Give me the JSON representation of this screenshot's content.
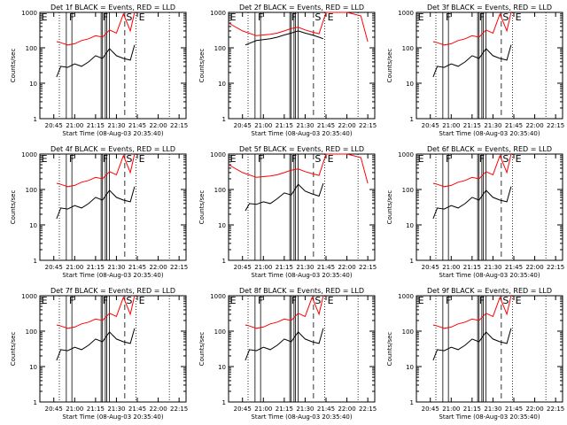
{
  "figure": {
    "xlabel": "Start Time (08-Aug-03 20:35:40)",
    "ylabel": "Counts/sec",
    "line_colors": {
      "events": "#000000",
      "lld": "#ff0000"
    },
    "marker_labels": [
      "E",
      "F",
      "F",
      "S",
      "E"
    ]
  },
  "chart_data": [
    {
      "type": "line",
      "title": "Det 1f BLACK = Events, RED = LLD",
      "xlabel": "Start Time (08-Aug-03 20:35:40)",
      "ylabel": "Counts/sec",
      "yscale": "log",
      "ylim": [
        1,
        1000
      ],
      "xticks": [
        "20:45",
        "21:00",
        "21:15",
        "21:30",
        "21:45",
        "22:00",
        "22:15"
      ],
      "yticks": [
        "1",
        "10",
        "100",
        "1000"
      ],
      "series": [
        {
          "x": [
            "20:47",
            "20:50",
            "20:55",
            "21:00",
            "21:05",
            "21:10",
            "21:15",
            "21:20",
            "21:25",
            "21:30",
            "21:35",
            "21:40",
            "21:43"
          ],
          "y": [
            15,
            30,
            28,
            35,
            30,
            40,
            60,
            50,
            95,
            60,
            50,
            45,
            120
          ]
        },
        {
          "x": [
            "20:47",
            "20:50",
            "20:55",
            "21:00",
            "21:05",
            "21:10",
            "21:15",
            "21:20",
            "21:25",
            "21:30",
            "21:35",
            "21:40",
            "21:43"
          ],
          "y": [
            150,
            140,
            120,
            130,
            160,
            180,
            220,
            200,
            320,
            260,
            900,
            300,
            1000
          ]
        }
      ]
    },
    {
      "type": "line",
      "title": "Det 2f BLACK = Events, RED = LLD",
      "xlabel": "Start Time (08-Aug-03 20:35:40)",
      "ylabel": "Counts/sec",
      "yscale": "log",
      "ylim": [
        1,
        1000
      ],
      "xticks": [
        "20:45",
        "21:00",
        "21:15",
        "21:30",
        "21:45",
        "22:00",
        "22:15"
      ],
      "yticks": [
        "1",
        "10",
        "100",
        "1000"
      ],
      "series": [
        {
          "x": [
            "20:47",
            "20:55",
            "21:00",
            "21:05",
            "21:10",
            "21:15",
            "21:20",
            "21:25",
            "21:30",
            "21:35",
            "21:40",
            "21:43"
          ],
          "y": [
            120,
            160,
            170,
            180,
            200,
            230,
            260,
            300,
            260,
            230,
            200,
            180
          ]
        },
        {
          "x": [
            "20:35",
            "20:45",
            "20:55",
            "21:00",
            "21:05",
            "21:10",
            "21:15",
            "21:20",
            "21:25",
            "21:30",
            "21:35",
            "21:40",
            "21:45",
            "21:50",
            "22:00",
            "22:10",
            "22:15"
          ],
          "y": [
            500,
            300,
            220,
            230,
            240,
            260,
            300,
            350,
            380,
            320,
            280,
            250,
            1000,
            1000,
            1000,
            800,
            150
          ]
        }
      ]
    },
    {
      "type": "line",
      "title": "Det 3f BLACK = Events, RED = LLD",
      "xlabel": "Start Time (08-Aug-03 20:35:40)",
      "ylabel": "Counts/sec",
      "yscale": "log",
      "ylim": [
        1,
        1000
      ],
      "xticks": [
        "20:45",
        "21:00",
        "21:15",
        "21:30",
        "21:45",
        "22:00",
        "22:15"
      ],
      "yticks": [
        "1",
        "10",
        "100",
        "1000"
      ],
      "series": [
        {
          "x": [
            "20:47",
            "20:50",
            "20:55",
            "21:00",
            "21:05",
            "21:10",
            "21:15",
            "21:20",
            "21:25",
            "21:30",
            "21:35",
            "21:40",
            "21:43"
          ],
          "y": [
            15,
            30,
            28,
            35,
            30,
            40,
            60,
            50,
            95,
            60,
            50,
            45,
            120
          ]
        },
        {
          "x": [
            "20:47",
            "20:50",
            "20:55",
            "21:00",
            "21:05",
            "21:10",
            "21:15",
            "21:20",
            "21:25",
            "21:30",
            "21:35",
            "21:40",
            "21:43"
          ],
          "y": [
            150,
            140,
            120,
            130,
            160,
            180,
            220,
            200,
            320,
            260,
            900,
            300,
            1000
          ]
        }
      ]
    },
    {
      "type": "line",
      "title": "Det 4f BLACK = Events, RED = LLD",
      "xlabel": "Start Time (08-Aug-03 20:35:40)",
      "ylabel": "Counts/sec",
      "yscale": "log",
      "ylim": [
        1,
        1000
      ],
      "xticks": [
        "20:45",
        "21:00",
        "21:15",
        "21:30",
        "21:45",
        "22:00",
        "22:15"
      ],
      "yticks": [
        "1",
        "10",
        "100",
        "1000"
      ],
      "series": [
        {
          "x": [
            "20:47",
            "20:50",
            "20:55",
            "21:00",
            "21:05",
            "21:10",
            "21:15",
            "21:20",
            "21:25",
            "21:30",
            "21:35",
            "21:40",
            "21:43"
          ],
          "y": [
            15,
            30,
            28,
            35,
            30,
            40,
            60,
            50,
            95,
            60,
            50,
            45,
            120
          ]
        },
        {
          "x": [
            "20:47",
            "20:50",
            "20:55",
            "21:00",
            "21:05",
            "21:10",
            "21:15",
            "21:20",
            "21:25",
            "21:30",
            "21:35",
            "21:40",
            "21:43"
          ],
          "y": [
            150,
            140,
            120,
            130,
            160,
            180,
            220,
            200,
            320,
            260,
            900,
            300,
            1000
          ]
        }
      ]
    },
    {
      "type": "line",
      "title": "Det 5f BLACK = Events, RED = LLD",
      "xlabel": "Start Time (08-Aug-03 20:35:40)",
      "ylabel": "Counts/sec",
      "yscale": "log",
      "ylim": [
        1,
        1000
      ],
      "xticks": [
        "20:45",
        "21:00",
        "21:15",
        "21:30",
        "21:45",
        "22:00",
        "22:15"
      ],
      "yticks": [
        "1",
        "10",
        "100",
        "1000"
      ],
      "series": [
        {
          "x": [
            "20:47",
            "20:50",
            "20:55",
            "21:00",
            "21:05",
            "21:10",
            "21:15",
            "21:20",
            "21:25",
            "21:30",
            "21:35",
            "21:40",
            "21:43"
          ],
          "y": [
            25,
            40,
            38,
            45,
            40,
            55,
            80,
            70,
            140,
            90,
            75,
            65,
            150
          ]
        },
        {
          "x": [
            "20:35",
            "20:45",
            "20:55",
            "21:00",
            "21:05",
            "21:10",
            "21:15",
            "21:20",
            "21:25",
            "21:30",
            "21:35",
            "21:40",
            "21:45",
            "21:50",
            "22:00",
            "22:10",
            "22:15"
          ],
          "y": [
            500,
            300,
            220,
            230,
            240,
            260,
            300,
            350,
            380,
            320,
            280,
            250,
            1000,
            1000,
            1000,
            800,
            150
          ]
        }
      ]
    },
    {
      "type": "line",
      "title": "Det 6f BLACK = Events, RED = LLD",
      "xlabel": "Start Time (08-Aug-03 20:35:40)",
      "ylabel": "Counts/sec",
      "yscale": "log",
      "ylim": [
        1,
        1000
      ],
      "xticks": [
        "20:45",
        "21:00",
        "21:15",
        "21:30",
        "21:45",
        "22:00",
        "22:15"
      ],
      "yticks": [
        "1",
        "10",
        "100",
        "1000"
      ],
      "series": [
        {
          "x": [
            "20:47",
            "20:50",
            "20:55",
            "21:00",
            "21:05",
            "21:10",
            "21:15",
            "21:20",
            "21:25",
            "21:30",
            "21:35",
            "21:40",
            "21:43"
          ],
          "y": [
            15,
            30,
            28,
            35,
            30,
            40,
            60,
            50,
            95,
            60,
            50,
            45,
            120
          ]
        },
        {
          "x": [
            "20:47",
            "20:50",
            "20:55",
            "21:00",
            "21:05",
            "21:10",
            "21:15",
            "21:20",
            "21:25",
            "21:30",
            "21:35",
            "21:40",
            "21:43"
          ],
          "y": [
            150,
            140,
            120,
            130,
            160,
            180,
            220,
            200,
            320,
            260,
            900,
            300,
            1000
          ]
        }
      ]
    },
    {
      "type": "line",
      "title": "Det 7f BLACK = Events, RED = LLD",
      "xlabel": "Start Time (08-Aug-03 20:35:40)",
      "ylabel": "Counts/sec",
      "yscale": "log",
      "ylim": [
        1,
        1000
      ],
      "xticks": [
        "20:45",
        "21:00",
        "21:15",
        "21:30",
        "21:45",
        "22:00",
        "22:15"
      ],
      "yticks": [
        "1",
        "10",
        "100",
        "1000"
      ],
      "series": [
        {
          "x": [
            "20:47",
            "20:50",
            "20:55",
            "21:00",
            "21:05",
            "21:10",
            "21:15",
            "21:20",
            "21:25",
            "21:30",
            "21:35",
            "21:40",
            "21:43"
          ],
          "y": [
            15,
            30,
            28,
            35,
            30,
            40,
            60,
            50,
            95,
            60,
            50,
            45,
            120
          ]
        },
        {
          "x": [
            "20:47",
            "20:50",
            "20:55",
            "21:00",
            "21:05",
            "21:10",
            "21:15",
            "21:20",
            "21:25",
            "21:30",
            "21:35",
            "21:40",
            "21:43"
          ],
          "y": [
            150,
            140,
            120,
            130,
            160,
            180,
            220,
            200,
            320,
            260,
            900,
            300,
            1000
          ]
        }
      ]
    },
    {
      "type": "line",
      "title": "Det 8f BLACK = Events, RED = LLD",
      "xlabel": "Start Time (08-Aug-03 20:35:40)",
      "ylabel": "Counts/sec",
      "yscale": "log",
      "ylim": [
        1,
        1000
      ],
      "xticks": [
        "20:45",
        "21:00",
        "21:15",
        "21:30",
        "21:45",
        "22:00",
        "22:15"
      ],
      "yticks": [
        "1",
        "10",
        "100",
        "1000"
      ],
      "series": [
        {
          "x": [
            "20:47",
            "20:50",
            "20:55",
            "21:00",
            "21:05",
            "21:10",
            "21:15",
            "21:20",
            "21:25",
            "21:30",
            "21:35",
            "21:40",
            "21:43"
          ],
          "y": [
            15,
            30,
            28,
            35,
            30,
            40,
            60,
            50,
            95,
            60,
            50,
            45,
            120
          ]
        },
        {
          "x": [
            "20:47",
            "20:50",
            "20:55",
            "21:00",
            "21:05",
            "21:10",
            "21:15",
            "21:20",
            "21:25",
            "21:30",
            "21:35",
            "21:40",
            "21:43"
          ],
          "y": [
            150,
            140,
            120,
            130,
            160,
            180,
            220,
            200,
            320,
            260,
            900,
            300,
            1000
          ]
        }
      ]
    },
    {
      "type": "line",
      "title": "Det 9f BLACK = Events, RED = LLD",
      "xlabel": "Start Time (08-Aug-03 20:35:40)",
      "ylabel": "Counts/sec",
      "yscale": "log",
      "ylim": [
        1,
        1000
      ],
      "xticks": [
        "20:45",
        "21:00",
        "21:15",
        "21:30",
        "21:45",
        "22:00",
        "22:15"
      ],
      "yticks": [
        "1",
        "10",
        "100",
        "1000"
      ],
      "series": [
        {
          "x": [
            "20:47",
            "20:50",
            "20:55",
            "21:00",
            "21:05",
            "21:10",
            "21:15",
            "21:20",
            "21:25",
            "21:30",
            "21:35",
            "21:40",
            "21:43"
          ],
          "y": [
            15,
            30,
            28,
            35,
            30,
            40,
            60,
            50,
            95,
            60,
            50,
            45,
            120
          ]
        },
        {
          "x": [
            "20:47",
            "20:50",
            "20:55",
            "21:00",
            "21:05",
            "21:10",
            "21:15",
            "21:20",
            "21:25",
            "21:30",
            "21:35",
            "21:40",
            "21:43"
          ],
          "y": [
            150,
            140,
            120,
            130,
            160,
            180,
            220,
            200,
            320,
            260,
            900,
            300,
            1000
          ]
        }
      ]
    }
  ]
}
